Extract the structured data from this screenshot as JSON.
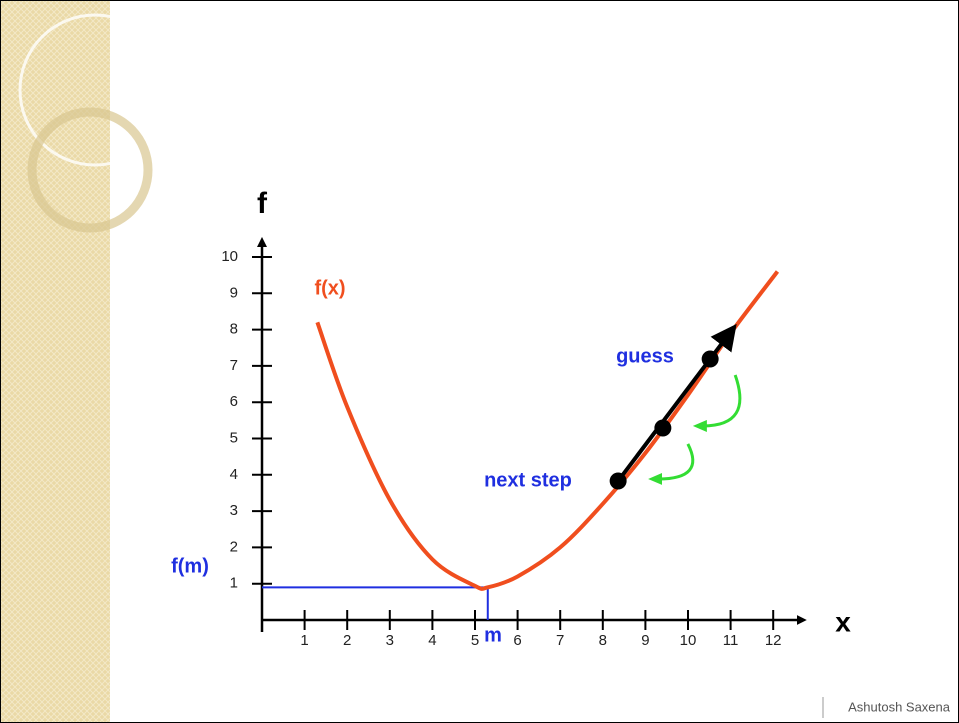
{
  "chart_data": {
    "type": "line",
    "x_label": "x",
    "y_label": "f",
    "xlim": [
      0,
      13
    ],
    "ylim": [
      0,
      10.8
    ],
    "xticks": [
      1,
      2,
      3,
      4,
      5,
      6,
      7,
      8,
      9,
      10,
      11,
      12
    ],
    "yticks": [
      1,
      2,
      3,
      4,
      5,
      6,
      7,
      8,
      9,
      10
    ],
    "grid": false,
    "curve": {
      "color": "#f04e1e",
      "x": [
        1.3,
        2,
        3,
        4,
        5,
        5.3,
        6,
        7,
        8,
        9,
        10,
        11,
        12.1
      ],
      "values": [
        8.2,
        5.87,
        3.31,
        1.67,
        0.94,
        0.9,
        1.2,
        2.0,
        3.2,
        4.6,
        6.2,
        7.9,
        9.6
      ]
    },
    "points": {
      "color": "#000000",
      "x": [
        8.36,
        9.41,
        10.52
      ],
      "values": [
        3.83,
        5.29,
        7.19
      ]
    },
    "minimum": {
      "color": "#1f2fe0",
      "x": 5.3,
      "value": 0.9
    },
    "annotations": {
      "curve": "f(x)",
      "guess": "guess",
      "next_step": "next step",
      "min_x": "m",
      "min_y": "f(m)"
    },
    "footer": "Ashutosh Saxena"
  }
}
